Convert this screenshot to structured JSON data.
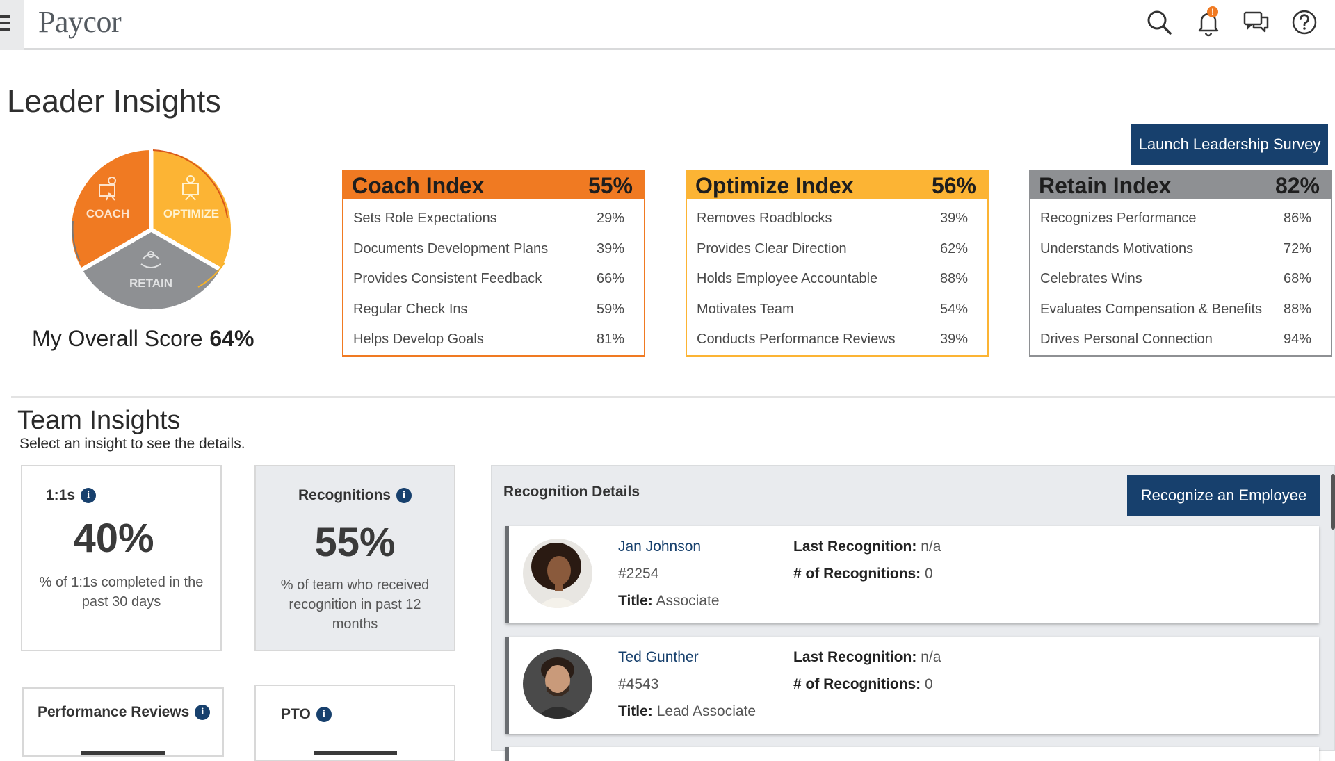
{
  "header": {
    "logo": "Paycor",
    "notification_count": "!"
  },
  "page_title": "Leader Insights",
  "launch_button": "Launch Leadership Survey",
  "pie": {
    "segments": [
      "COACH",
      "OPTIMIZE",
      "RETAIN"
    ],
    "colors": {
      "coach": "#f07a22",
      "optimize": "#fcb434",
      "retain": "#8e9093"
    }
  },
  "overall": {
    "label": "My Overall Score",
    "value": "64%"
  },
  "indices": [
    {
      "name": "Coach Index",
      "value": "55%",
      "rows": [
        {
          "label": "Sets Role Expectations",
          "value": "29%"
        },
        {
          "label": "Documents Development Plans",
          "value": "39%"
        },
        {
          "label": "Provides Consistent Feedback",
          "value": "66%"
        },
        {
          "label": "Regular Check Ins",
          "value": "59%"
        },
        {
          "label": "Helps Develop Goals",
          "value": "81%"
        }
      ]
    },
    {
      "name": "Optimize Index",
      "value": "56%",
      "rows": [
        {
          "label": "Removes Roadblocks",
          "value": "39%"
        },
        {
          "label": "Provides Clear Direction",
          "value": "62%"
        },
        {
          "label": "Holds Employee Accountable",
          "value": "88%"
        },
        {
          "label": "Motivates Team",
          "value": "54%"
        },
        {
          "label": "Conducts Performance Reviews",
          "value": "39%"
        }
      ]
    },
    {
      "name": "Retain Index",
      "value": "82%",
      "rows": [
        {
          "label": "Recognizes Performance",
          "value": "86%"
        },
        {
          "label": "Understands Motivations",
          "value": "72%"
        },
        {
          "label": "Celebrates Wins",
          "value": "68%"
        },
        {
          "label": "Evaluates Compensation & Benefits",
          "value": "88%"
        },
        {
          "label": "Drives Personal Connection",
          "value": "94%"
        }
      ]
    }
  ],
  "team": {
    "title": "Team Insights",
    "subtitle": "Select an insight to see the details.",
    "metrics": [
      {
        "title": "1:1s",
        "value": "40%",
        "desc": "% of 1:1s completed in the past 30 days"
      },
      {
        "title": "Recognitions",
        "value": "55%",
        "desc": "% of team who received recognition in past 12 months"
      },
      {
        "title": "Performance Reviews",
        "value": "",
        "desc": ""
      },
      {
        "title": "PTO",
        "value": "",
        "desc": ""
      }
    ],
    "info_glyph": "i"
  },
  "recognition": {
    "title": "Recognition Details",
    "button": "Recognize an Employee",
    "labels": {
      "last": "Last Recognition:",
      "count": "# of Recognitions:",
      "title": "Title:"
    },
    "employees": [
      {
        "name": "Jan Johnson",
        "id": "#2254",
        "title": "Associate",
        "last": "n/a",
        "count": "0"
      },
      {
        "name": "Ted Gunther",
        "id": "#4543",
        "title": "Lead Associate",
        "last": "n/a",
        "count": "0"
      }
    ]
  }
}
